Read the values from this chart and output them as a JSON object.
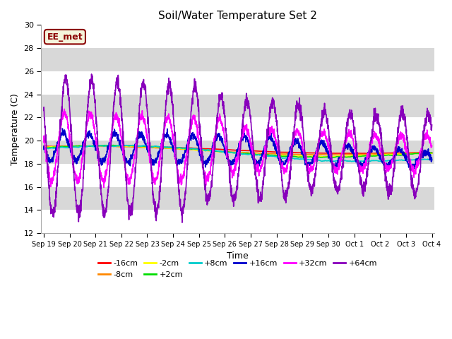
{
  "title": "Soil/Water Temperature Set 2",
  "xlabel": "Time",
  "ylabel": "Temperature (C)",
  "ylim": [
    12,
    30
  ],
  "background_color": "#ffffff",
  "plot_bg_color": "#e8e8e8",
  "annotation_text": "EE_met",
  "annotation_box_facecolor": "#f5f5dc",
  "annotation_box_edge": "#8b0000",
  "annotation_text_color": "#8b0000",
  "series_order": [
    "-16cm",
    "-8cm",
    "-2cm",
    "+2cm",
    "+8cm",
    "+16cm",
    "+32cm",
    "+64cm"
  ],
  "series_colors": {
    "-16cm": "#ff0000",
    "-8cm": "#ff8800",
    "-2cm": "#ffff00",
    "+2cm": "#00dd00",
    "+8cm": "#00cccc",
    "+16cm": "#0000cc",
    "+32cm": "#ff00ff",
    "+64cm": "#8800bb"
  },
  "x_tick_labels": [
    "Sep 19",
    "Sep 20",
    "Sep 21",
    "Sep 22",
    "Sep 23",
    "Sep 24",
    "Sep 25",
    "Sep 26",
    "Sep 27",
    "Sep 28",
    "Sep 29",
    "Sep 30",
    "Oct 1",
    "Oct 2",
    "Oct 3",
    "Oct 4"
  ],
  "y_ticks": [
    12,
    14,
    16,
    18,
    20,
    22,
    24,
    26,
    28,
    30
  ],
  "grid_colors": [
    "#ffffff",
    "#d8d8d8"
  ],
  "lw": 1.2
}
